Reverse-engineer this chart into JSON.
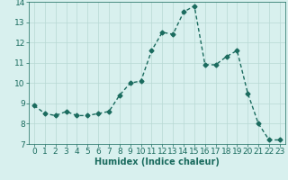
{
  "x": [
    0,
    1,
    2,
    3,
    4,
    5,
    6,
    7,
    8,
    9,
    10,
    11,
    12,
    13,
    14,
    15,
    16,
    17,
    18,
    19,
    20,
    21,
    22,
    23
  ],
  "y": [
    8.9,
    8.5,
    8.4,
    8.6,
    8.4,
    8.4,
    8.5,
    8.6,
    9.4,
    10.0,
    10.1,
    11.6,
    12.5,
    12.4,
    13.5,
    13.8,
    10.9,
    10.9,
    11.3,
    11.6,
    9.5,
    8.0,
    7.2,
    7.2
  ],
  "line_color": "#1a6b5e",
  "marker": "D",
  "markersize": 2.5,
  "linewidth": 1.0,
  "background_color": "#d8f0ee",
  "grid_color": "#b8d8d4",
  "xlabel": "Humidex (Indice chaleur)",
  "xlabel_fontsize": 7,
  "tick_fontsize": 6.5,
  "xlim": [
    -0.5,
    23.5
  ],
  "ylim": [
    7,
    14
  ],
  "yticks": [
    7,
    8,
    9,
    10,
    11,
    12,
    13,
    14
  ],
  "xticks": [
    0,
    1,
    2,
    3,
    4,
    5,
    6,
    7,
    8,
    9,
    10,
    11,
    12,
    13,
    14,
    15,
    16,
    17,
    18,
    19,
    20,
    21,
    22,
    23
  ]
}
